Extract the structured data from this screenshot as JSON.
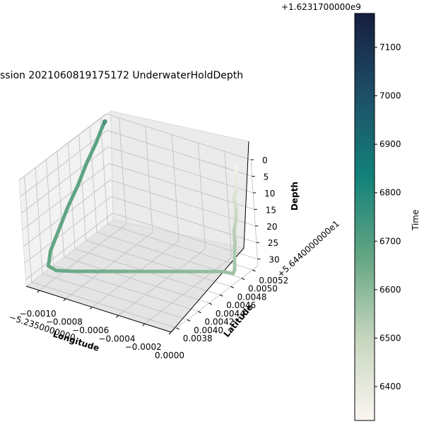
{
  "chart_data": {
    "type": "scatter",
    "title": "ssion 2021060819175172 UnderwaterHoldDepth",
    "xlabel": "Longitude",
    "ylabel": "Latitude",
    "zlabel": "Depth",
    "colorbar_label": "Time",
    "x_offset_label": "−5.2350000000",
    "y_offset_label": "+5.6440000000e1",
    "colorbar_offset_label": "+1.6231700000e9",
    "xlim": [
      -0.0011,
      0.0
    ],
    "ylim": [
      0.0037,
      0.0053
    ],
    "zlim": [
      32,
      0
    ],
    "x_ticks": [
      "−0.0010",
      "−0.0008",
      "−0.0006",
      "−0.0004",
      "−0.0002",
      "0.0000"
    ],
    "y_ticks": [
      "0.0038",
      "0.0040",
      "0.0042",
      "0.0044",
      "0.0046",
      "0.0048",
      "0.0050",
      "0.0052"
    ],
    "z_ticks": [
      "0",
      "5",
      "10",
      "15",
      "20",
      "25",
      "30"
    ],
    "colorbar_ticks": [
      "6400",
      "6500",
      "6600",
      "6700",
      "6800",
      "6900",
      "7000",
      "7100"
    ],
    "colorbar_range": [
      6330,
      7170
    ],
    "colormap": [
      "#fbf6f2",
      "#c7d6bf",
      "#64a683",
      "#128179",
      "#1e4f68",
      "#151e3f"
    ],
    "points": [
      {
        "x": -3e-05,
        "y": 0.0051,
        "z": 0,
        "t": 6350
      },
      {
        "x": -3e-05,
        "y": 0.00508,
        "z": 3,
        "t": 6380
      },
      {
        "x": -2e-05,
        "y": 0.00507,
        "z": 6,
        "t": 6410
      },
      {
        "x": -4e-05,
        "y": 0.00505,
        "z": 9,
        "t": 6440
      },
      {
        "x": -2e-05,
        "y": 0.00503,
        "z": 12,
        "t": 6470
      },
      {
        "x": -2e-05,
        "y": 0.00501,
        "z": 15,
        "t": 6500
      },
      {
        "x": -3e-05,
        "y": 0.00499,
        "z": 18,
        "t": 6520
      },
      {
        "x": -2e-05,
        "y": 0.00497,
        "z": 21,
        "t": 6530
      },
      {
        "x": -2e-05,
        "y": 0.00495,
        "z": 24,
        "t": 6540
      },
      {
        "x": -2e-05,
        "y": 0.00494,
        "z": 27,
        "t": 6550
      },
      {
        "x": -2e-05,
        "y": 0.00493,
        "z": 29,
        "t": 6560
      },
      {
        "x": -3e-05,
        "y": 0.00492,
        "z": 30,
        "t": 6565
      },
      {
        "x": -0.0001,
        "y": 0.0049,
        "z": 30,
        "t": 6575
      },
      {
        "x": -0.0002,
        "y": 0.0048,
        "z": 30,
        "t": 6585
      },
      {
        "x": -0.0003,
        "y": 0.0047,
        "z": 30,
        "t": 6595
      },
      {
        "x": -0.0004,
        "y": 0.0046,
        "z": 30,
        "t": 6605
      },
      {
        "x": -0.0005,
        "y": 0.0045,
        "z": 30,
        "t": 6615
      },
      {
        "x": -0.0006,
        "y": 0.0044,
        "z": 30,
        "t": 6625
      },
      {
        "x": -0.0007,
        "y": 0.0043,
        "z": 30,
        "t": 6635
      },
      {
        "x": -0.0008,
        "y": 0.0042,
        "z": 30,
        "t": 6645
      },
      {
        "x": -0.0009,
        "y": 0.0041,
        "z": 30,
        "t": 6652
      },
      {
        "x": -0.001,
        "y": 0.00402,
        "z": 30,
        "t": 6658
      },
      {
        "x": -0.00105,
        "y": 0.004,
        "z": 29,
        "t": 6662
      },
      {
        "x": -0.00107,
        "y": 0.0041,
        "z": 26,
        "t": 6666
      },
      {
        "x": -0.00108,
        "y": 0.0043,
        "z": 22,
        "t": 6670
      },
      {
        "x": -0.00109,
        "y": 0.0045,
        "z": 18,
        "t": 6674
      },
      {
        "x": -0.00109,
        "y": 0.0047,
        "z": 14,
        "t": 6678
      },
      {
        "x": -0.0011,
        "y": 0.0049,
        "z": 10,
        "t": 6682
      },
      {
        "x": -0.0011,
        "y": 0.0051,
        "z": 6,
        "t": 6686
      },
      {
        "x": -0.0011,
        "y": 0.00522,
        "z": 3,
        "t": 6690
      },
      {
        "x": -0.0011,
        "y": 0.00527,
        "z": 2,
        "t": 6700
      }
    ]
  }
}
